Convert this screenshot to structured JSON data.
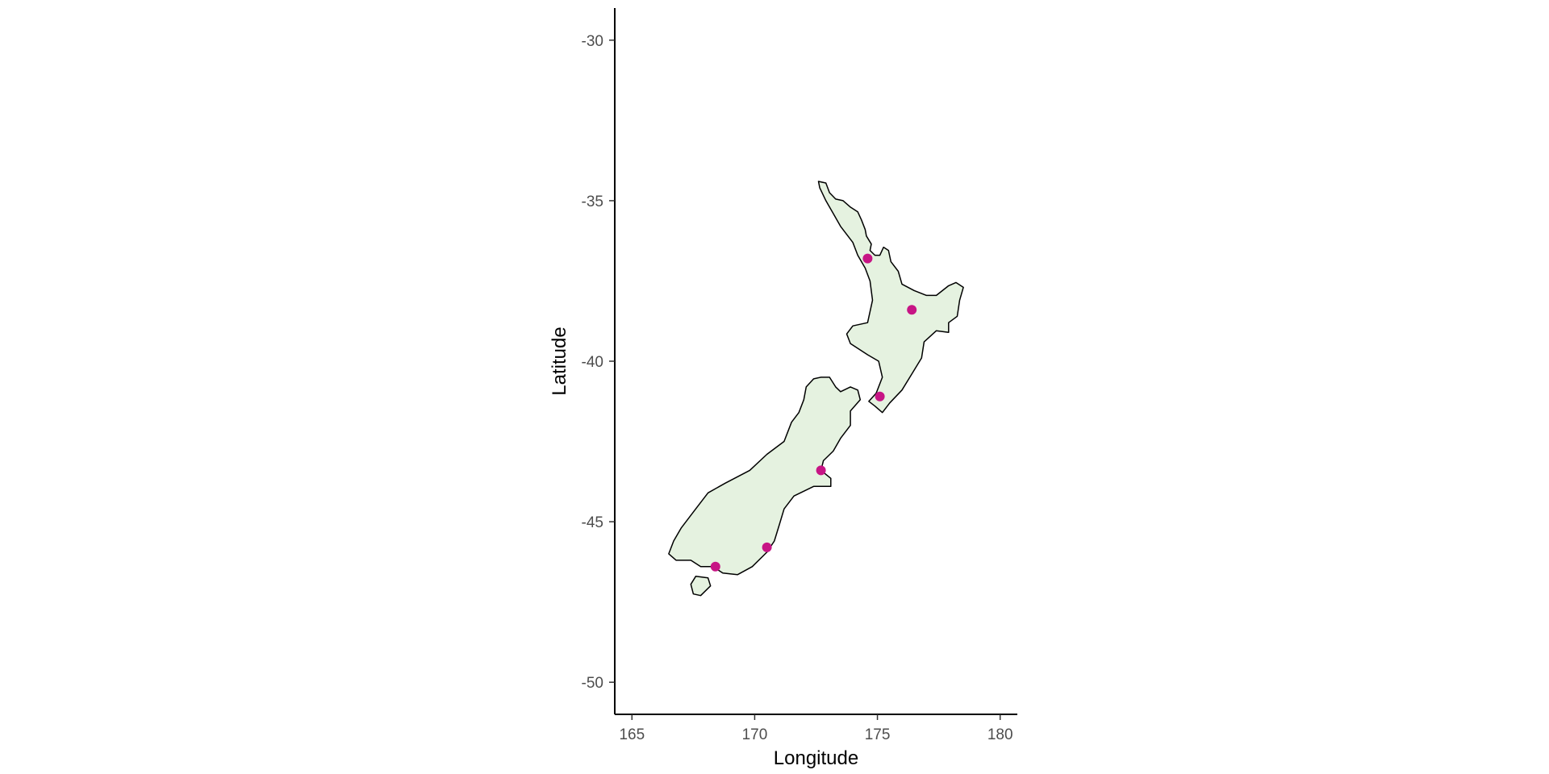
{
  "chart_data": {
    "type": "scatter",
    "title": "",
    "xlabel": "Longitude",
    "ylabel": "Latitude",
    "xlim": [
      164.3,
      180.7
    ],
    "ylim": [
      -51.0,
      -29.0
    ],
    "x_ticks": [
      165,
      170,
      175,
      180
    ],
    "x_tick_labels": [
      "165",
      "170",
      "175",
      "180"
    ],
    "y_ticks": [
      -30,
      -35,
      -40,
      -45,
      -50
    ],
    "y_tick_labels": [
      "-30",
      "-35",
      "-40",
      "-45",
      "-50"
    ],
    "grid": false,
    "legend": "none",
    "land_fill": "#e5f2e0",
    "land_outline": "#000000",
    "point_color": "#c71585",
    "axis_color": "#000000",
    "points": [
      {
        "x": 174.6,
        "y": -36.8
      },
      {
        "x": 176.4,
        "y": -38.4
      },
      {
        "x": 175.1,
        "y": -41.1
      },
      {
        "x": 172.7,
        "y": -43.4
      },
      {
        "x": 170.5,
        "y": -45.8
      },
      {
        "x": 168.4,
        "y": -46.4
      }
    ],
    "regions": [
      {
        "name": "north-island",
        "outline": [
          [
            172.6,
            -34.4
          ],
          [
            172.9,
            -34.45
          ],
          [
            173.05,
            -34.75
          ],
          [
            173.3,
            -34.95
          ],
          [
            173.6,
            -35.0
          ],
          [
            173.9,
            -35.2
          ],
          [
            174.2,
            -35.35
          ],
          [
            174.35,
            -35.6
          ],
          [
            174.5,
            -35.9
          ],
          [
            174.55,
            -36.1
          ],
          [
            174.75,
            -36.35
          ],
          [
            174.7,
            -36.55
          ],
          [
            174.9,
            -36.7
          ],
          [
            175.1,
            -36.7
          ],
          [
            175.25,
            -36.45
          ],
          [
            175.45,
            -36.55
          ],
          [
            175.55,
            -36.9
          ],
          [
            175.85,
            -37.2
          ],
          [
            176.0,
            -37.6
          ],
          [
            176.5,
            -37.8
          ],
          [
            177.0,
            -37.95
          ],
          [
            177.4,
            -37.95
          ],
          [
            177.9,
            -37.65
          ],
          [
            178.2,
            -37.55
          ],
          [
            178.5,
            -37.7
          ],
          [
            178.35,
            -38.1
          ],
          [
            178.25,
            -38.6
          ],
          [
            177.9,
            -38.8
          ],
          [
            177.9,
            -39.1
          ],
          [
            177.4,
            -39.05
          ],
          [
            176.9,
            -39.4
          ],
          [
            176.8,
            -39.9
          ],
          [
            176.4,
            -40.4
          ],
          [
            176.0,
            -40.9
          ],
          [
            175.5,
            -41.3
          ],
          [
            175.2,
            -41.6
          ],
          [
            174.9,
            -41.4
          ],
          [
            174.65,
            -41.25
          ],
          [
            174.95,
            -41.0
          ],
          [
            175.2,
            -40.5
          ],
          [
            175.05,
            -40.0
          ],
          [
            174.6,
            -39.8
          ],
          [
            173.9,
            -39.45
          ],
          [
            173.75,
            -39.15
          ],
          [
            174.0,
            -38.9
          ],
          [
            174.6,
            -38.8
          ],
          [
            174.8,
            -38.1
          ],
          [
            174.7,
            -37.5
          ],
          [
            174.5,
            -37.1
          ],
          [
            174.2,
            -36.7
          ],
          [
            174.0,
            -36.3
          ],
          [
            173.5,
            -35.8
          ],
          [
            173.2,
            -35.4
          ],
          [
            172.9,
            -35.0
          ],
          [
            172.65,
            -34.6
          ]
        ]
      },
      {
        "name": "south-island",
        "outline": [
          [
            172.7,
            -40.5
          ],
          [
            173.05,
            -40.5
          ],
          [
            173.3,
            -40.8
          ],
          [
            173.5,
            -40.95
          ],
          [
            173.9,
            -40.8
          ],
          [
            174.2,
            -40.9
          ],
          [
            174.3,
            -41.2
          ],
          [
            173.9,
            -41.55
          ],
          [
            173.9,
            -42.0
          ],
          [
            173.5,
            -42.4
          ],
          [
            173.2,
            -42.8
          ],
          [
            172.8,
            -43.1
          ],
          [
            172.7,
            -43.4
          ],
          [
            173.1,
            -43.65
          ],
          [
            173.1,
            -43.9
          ],
          [
            172.4,
            -43.9
          ],
          [
            171.6,
            -44.2
          ],
          [
            171.2,
            -44.6
          ],
          [
            171.0,
            -45.1
          ],
          [
            170.8,
            -45.6
          ],
          [
            170.5,
            -45.95
          ],
          [
            169.9,
            -46.4
          ],
          [
            169.3,
            -46.65
          ],
          [
            168.7,
            -46.6
          ],
          [
            168.3,
            -46.4
          ],
          [
            167.8,
            -46.4
          ],
          [
            167.4,
            -46.2
          ],
          [
            166.8,
            -46.2
          ],
          [
            166.5,
            -46.0
          ],
          [
            166.7,
            -45.6
          ],
          [
            167.0,
            -45.2
          ],
          [
            167.5,
            -44.7
          ],
          [
            168.1,
            -44.1
          ],
          [
            168.8,
            -43.8
          ],
          [
            169.8,
            -43.4
          ],
          [
            170.5,
            -42.9
          ],
          [
            171.2,
            -42.5
          ],
          [
            171.5,
            -41.9
          ],
          [
            171.8,
            -41.6
          ],
          [
            172.0,
            -41.2
          ],
          [
            172.1,
            -40.8
          ],
          [
            172.4,
            -40.55
          ]
        ]
      },
      {
        "name": "stewart-island",
        "outline": [
          [
            167.6,
            -46.7
          ],
          [
            168.1,
            -46.75
          ],
          [
            168.2,
            -47.0
          ],
          [
            167.8,
            -47.3
          ],
          [
            167.5,
            -47.25
          ],
          [
            167.4,
            -46.95
          ]
        ]
      }
    ]
  }
}
